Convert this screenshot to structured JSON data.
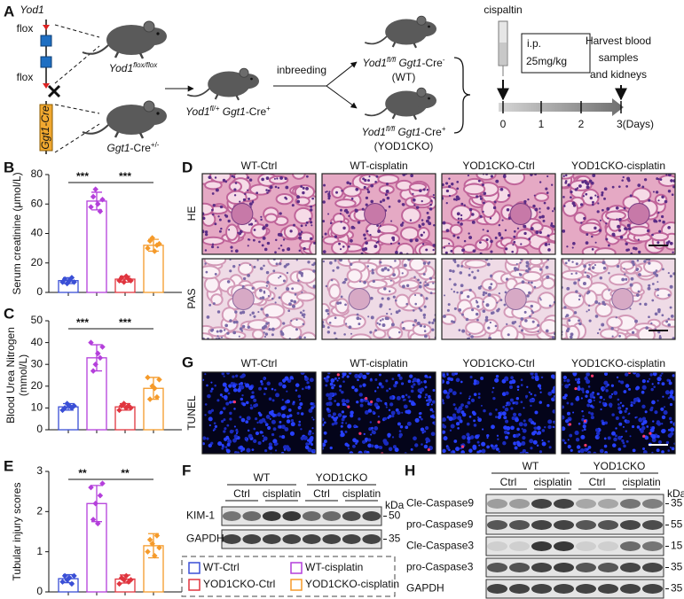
{
  "panel_labels": [
    "A",
    "B",
    "C",
    "D",
    "E",
    "F",
    "G",
    "H"
  ],
  "breeding": {
    "gene": "Yod1",
    "flox": [
      "flox",
      "flox"
    ],
    "cre_box": "Ggt1-Cre",
    "parent_flox": {
      "parts": [
        {
          "t": "Yod1",
          "s": "italic"
        },
        {
          "t": "flox/flox",
          "s": "sup-italic"
        }
      ]
    },
    "parent_cre": {
      "parts": [
        {
          "t": "Ggt1",
          "s": "italic"
        },
        {
          "t": "-Cre",
          "s": "normal"
        },
        {
          "t": "+/-",
          "s": "sup"
        }
      ]
    },
    "f1": {
      "parts": [
        {
          "t": "Yod1",
          "s": "italic"
        },
        {
          "t": "fl/+",
          "s": "sup-italic"
        },
        {
          "t": " Ggt1",
          "s": "italic"
        },
        {
          "t": "-Cre",
          "s": "normal"
        },
        {
          "t": "+",
          "s": "sup"
        }
      ]
    },
    "step": "inbreeding",
    "offspring": [
      {
        "parts": [
          {
            "t": "Yod1",
            "s": "italic"
          },
          {
            "t": "fl/fl",
            "s": "sup-italic"
          },
          {
            "t": " Ggt1",
            "s": "italic"
          },
          {
            "t": "-Cre",
            "s": "normal"
          },
          {
            "t": "-",
            "s": "sup"
          }
        ],
        "group": "(WT)"
      },
      {
        "parts": [
          {
            "t": "Yod1",
            "s": "italic"
          },
          {
            "t": "fl/fl",
            "s": "sup-italic"
          },
          {
            "t": " Ggt1",
            "s": "italic"
          },
          {
            "t": "-Cre",
            "s": "normal"
          },
          {
            "t": "+",
            "s": "sup"
          }
        ],
        "group": "(YOD1CKO)"
      }
    ]
  },
  "timeline": {
    "drug": "cispaltin",
    "route": "i.p.",
    "dose": "25mg/kg",
    "harvest": [
      "Harvest blood",
      "samples",
      "and kidneys"
    ],
    "days": [
      "0",
      "1",
      "2",
      "3(Days)"
    ]
  },
  "legend": [
    {
      "name": "WT-Ctrl",
      "color": "#3a4fd6"
    },
    {
      "name": "WT-cisplatin",
      "color": "#b43fdb"
    },
    {
      "name": "YOD1CKO-Ctrl",
      "color": "#e0353f"
    },
    {
      "name": "YOD1CKO-cisplatin",
      "color": "#f59a2a"
    }
  ],
  "chart_data": [
    {
      "type": "bar",
      "y_label": [
        "Serum creatinine (μmol/L)"
      ],
      "categories": [
        null,
        null,
        null,
        null
      ],
      "values": [
        8,
        62,
        9,
        32
      ],
      "errors": [
        2,
        6,
        2,
        4
      ],
      "points": [
        [
          7,
          9,
          6,
          8,
          10,
          7
        ],
        [
          58,
          65,
          70,
          60,
          55,
          63
        ],
        [
          8,
          10,
          7,
          11,
          9,
          8
        ],
        [
          30,
          35,
          37,
          28,
          32,
          33
        ]
      ],
      "ylim": [
        0,
        80
      ],
      "yticks": [
        0,
        20,
        40,
        60,
        80
      ],
      "significance": [
        {
          "text": "***",
          "from": 0,
          "to": 1
        },
        {
          "text": "***",
          "from": 1,
          "to": 3
        }
      ]
    },
    {
      "type": "bar",
      "y_label": [
        "Blood Urea Nitrogen",
        "(mmol/L)"
      ],
      "categories": [
        null,
        null,
        null,
        null
      ],
      "values": [
        10.5,
        33,
        10.5,
        19
      ],
      "errors": [
        1.5,
        6,
        1.5,
        5
      ],
      "points": [
        [
          9,
          10,
          12,
          11,
          10,
          11
        ],
        [
          40,
          27,
          30,
          35,
          33,
          38
        ],
        [
          9,
          11,
          12,
          10,
          11,
          10
        ],
        [
          24,
          14,
          20,
          19,
          15,
          23
        ]
      ],
      "ylim": [
        0,
        50
      ],
      "yticks": [
        0,
        10,
        20,
        30,
        40,
        50
      ],
      "significance": [
        {
          "text": "***",
          "from": 0,
          "to": 1
        },
        {
          "text": "***",
          "from": 1,
          "to": 3
        }
      ]
    },
    {
      "type": "bar",
      "y_label": [
        "Tubular injury scores"
      ],
      "categories": [
        null,
        null,
        null,
        null
      ],
      "values": [
        0.33,
        2.2,
        0.32,
        1.15
      ],
      "errors": [
        0.1,
        0.45,
        0.1,
        0.3
      ],
      "points": [
        [
          0.25,
          0.4,
          0.3,
          0.35,
          0.2,
          0.4
        ],
        [
          2.6,
          1.8,
          2.2,
          1.7,
          2.4,
          2.7
        ],
        [
          0.2,
          0.35,
          0.3,
          0.4,
          0.25,
          0.3
        ],
        [
          1.0,
          1.3,
          1.2,
          0.9,
          1.4,
          1.1
        ]
      ],
      "ylim": [
        0,
        3
      ],
      "yticks": [
        0,
        1,
        2,
        3
      ],
      "significance": [
        {
          "text": "**",
          "from": 0,
          "to": 1
        },
        {
          "text": "**",
          "from": 1,
          "to": 3
        }
      ]
    }
  ],
  "histology": {
    "columns": [
      "WT-Ctrl",
      "WT-cisplatin",
      "YOD1CKO-Ctrl",
      "YOD1CKO-cisplatin"
    ],
    "rows": [
      "HE",
      "PAS"
    ]
  },
  "tunel": {
    "columns": [
      "WT-Ctrl",
      "WT-cisplatin",
      "YOD1CKO-Ctrl",
      "YOD1CKO-cisplatin"
    ],
    "row": "TUNEL"
  },
  "blot_f": {
    "groups": [
      "WT",
      "YOD1CKO"
    ],
    "conditions": [
      "Ctrl",
      "cisplatin",
      "Ctrl",
      "cisplatin"
    ],
    "unit": "kDa",
    "rows": [
      {
        "name": "KIM-1",
        "marker": "50"
      },
      {
        "name": "GAPDH",
        "marker": "35"
      }
    ]
  },
  "blot_h": {
    "groups": [
      "WT",
      "YOD1CKO"
    ],
    "conditions": [
      "Ctrl",
      "cisplatin",
      "Ctrl",
      "cisplatin"
    ],
    "unit": "kDa",
    "rows": [
      {
        "name": "Cle-Caspase9",
        "marker": "35"
      },
      {
        "name": "pro-Caspase9",
        "marker": "55"
      },
      {
        "name": "Cle-Caspase3",
        "marker": "15"
      },
      {
        "name": "pro-Caspase3",
        "marker": "35"
      },
      {
        "name": "GAPDH",
        "marker": "35"
      }
    ]
  }
}
